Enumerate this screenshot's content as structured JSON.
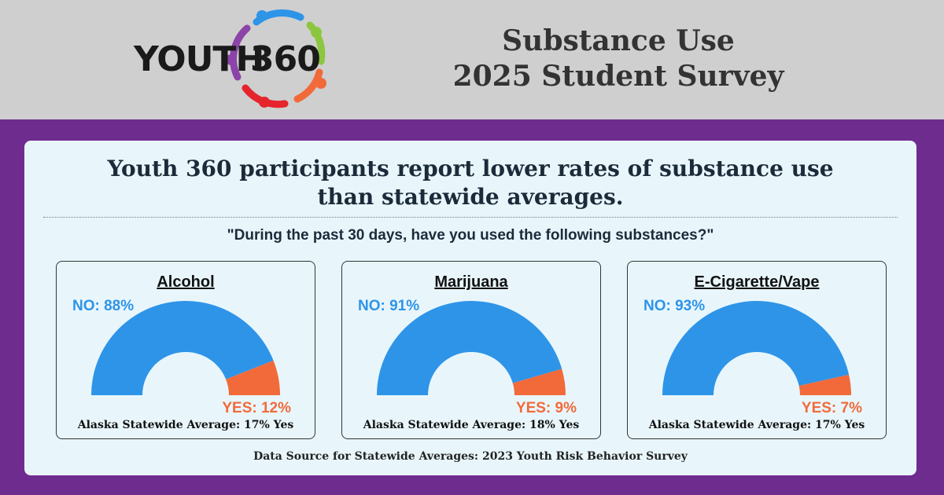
{
  "header": {
    "logo_word": "YOUTH",
    "logo_number": "360",
    "title_line1": "Substance Use",
    "title_line2": "2025 Student Survey"
  },
  "headline_line1": "Youth 360 participants report lower rates of substance use",
  "headline_line2": "than statewide averages.",
  "question": "\"During the past 30 days, have you used the following substances?\"",
  "source": "Data Source for Statewide Averages: 2023 Youth Risk Behavior Survey",
  "colors": {
    "no": "#2e94e8",
    "yes": "#f26a3a",
    "background": "#6f2c8f",
    "panel": "#e8f6fc"
  },
  "chart_data": [
    {
      "type": "pie",
      "variant": "half-donut",
      "title": "Alcohol",
      "categories": [
        "NO",
        "YES"
      ],
      "values": [
        88,
        12
      ],
      "labels": [
        "NO: 88%",
        "YES: 12%"
      ],
      "footnote": "Alaska Statewide Average: 17% Yes"
    },
    {
      "type": "pie",
      "variant": "half-donut",
      "title": "Marijuana",
      "categories": [
        "NO",
        "YES"
      ],
      "values": [
        91,
        9
      ],
      "labels": [
        "NO: 91%",
        "YES: 9%"
      ],
      "footnote": "Alaska Statewide Average: 18% Yes"
    },
    {
      "type": "pie",
      "variant": "half-donut",
      "title": "E-Cigarette/Vape",
      "categories": [
        "NO",
        "YES"
      ],
      "values": [
        93,
        7
      ],
      "labels": [
        "NO: 93%",
        "YES: 7%"
      ],
      "footnote": "Alaska Statewide Average: 17% Yes"
    }
  ]
}
